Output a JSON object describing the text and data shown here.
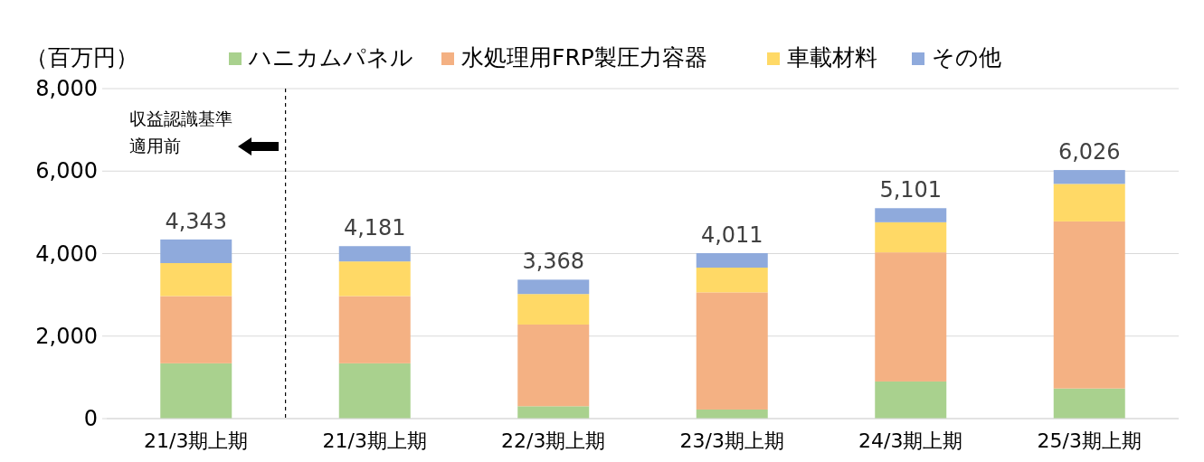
{
  "chart_data": {
    "type": "bar",
    "stacked": true,
    "ylabel": "（百万円）",
    "categories": [
      "21/3期上期",
      "21/3期上期",
      "22/3期上期",
      "23/3期上期",
      "24/3期上期",
      "25/3期上期"
    ],
    "series": [
      {
        "name": "ハニカムパネル",
        "color": "#a9d18e",
        "values": [
          1340,
          1340,
          300,
          220,
          900,
          730
        ]
      },
      {
        "name": "水処理用FRP製圧力容器",
        "color": "#f4b183",
        "values": [
          1630,
          1630,
          1980,
          2840,
          3130,
          4050
        ]
      },
      {
        "name": "車載材料",
        "color": "#ffd966",
        "values": [
          800,
          840,
          740,
          600,
          730,
          910
        ]
      },
      {
        "name": "その他",
        "color": "#8faadc",
        "values": [
          573,
          371,
          348,
          351,
          341,
          336
        ]
      }
    ],
    "totals": [
      "4,343",
      "4,181",
      "3,368",
      "4,011",
      "5,101",
      "6,026"
    ],
    "ylim": [
      0,
      8000
    ],
    "yticks": [
      {
        "value": 0,
        "label": "0"
      },
      {
        "value": 2000,
        "label": "2,000"
      },
      {
        "value": 4000,
        "label": "4,000"
      },
      {
        "value": 6000,
        "label": "6,000"
      },
      {
        "value": 8000,
        "label": "8,000"
      }
    ],
    "grid": "y",
    "legend": "top",
    "annotations": [
      "収益認識基準適用前"
    ]
  }
}
